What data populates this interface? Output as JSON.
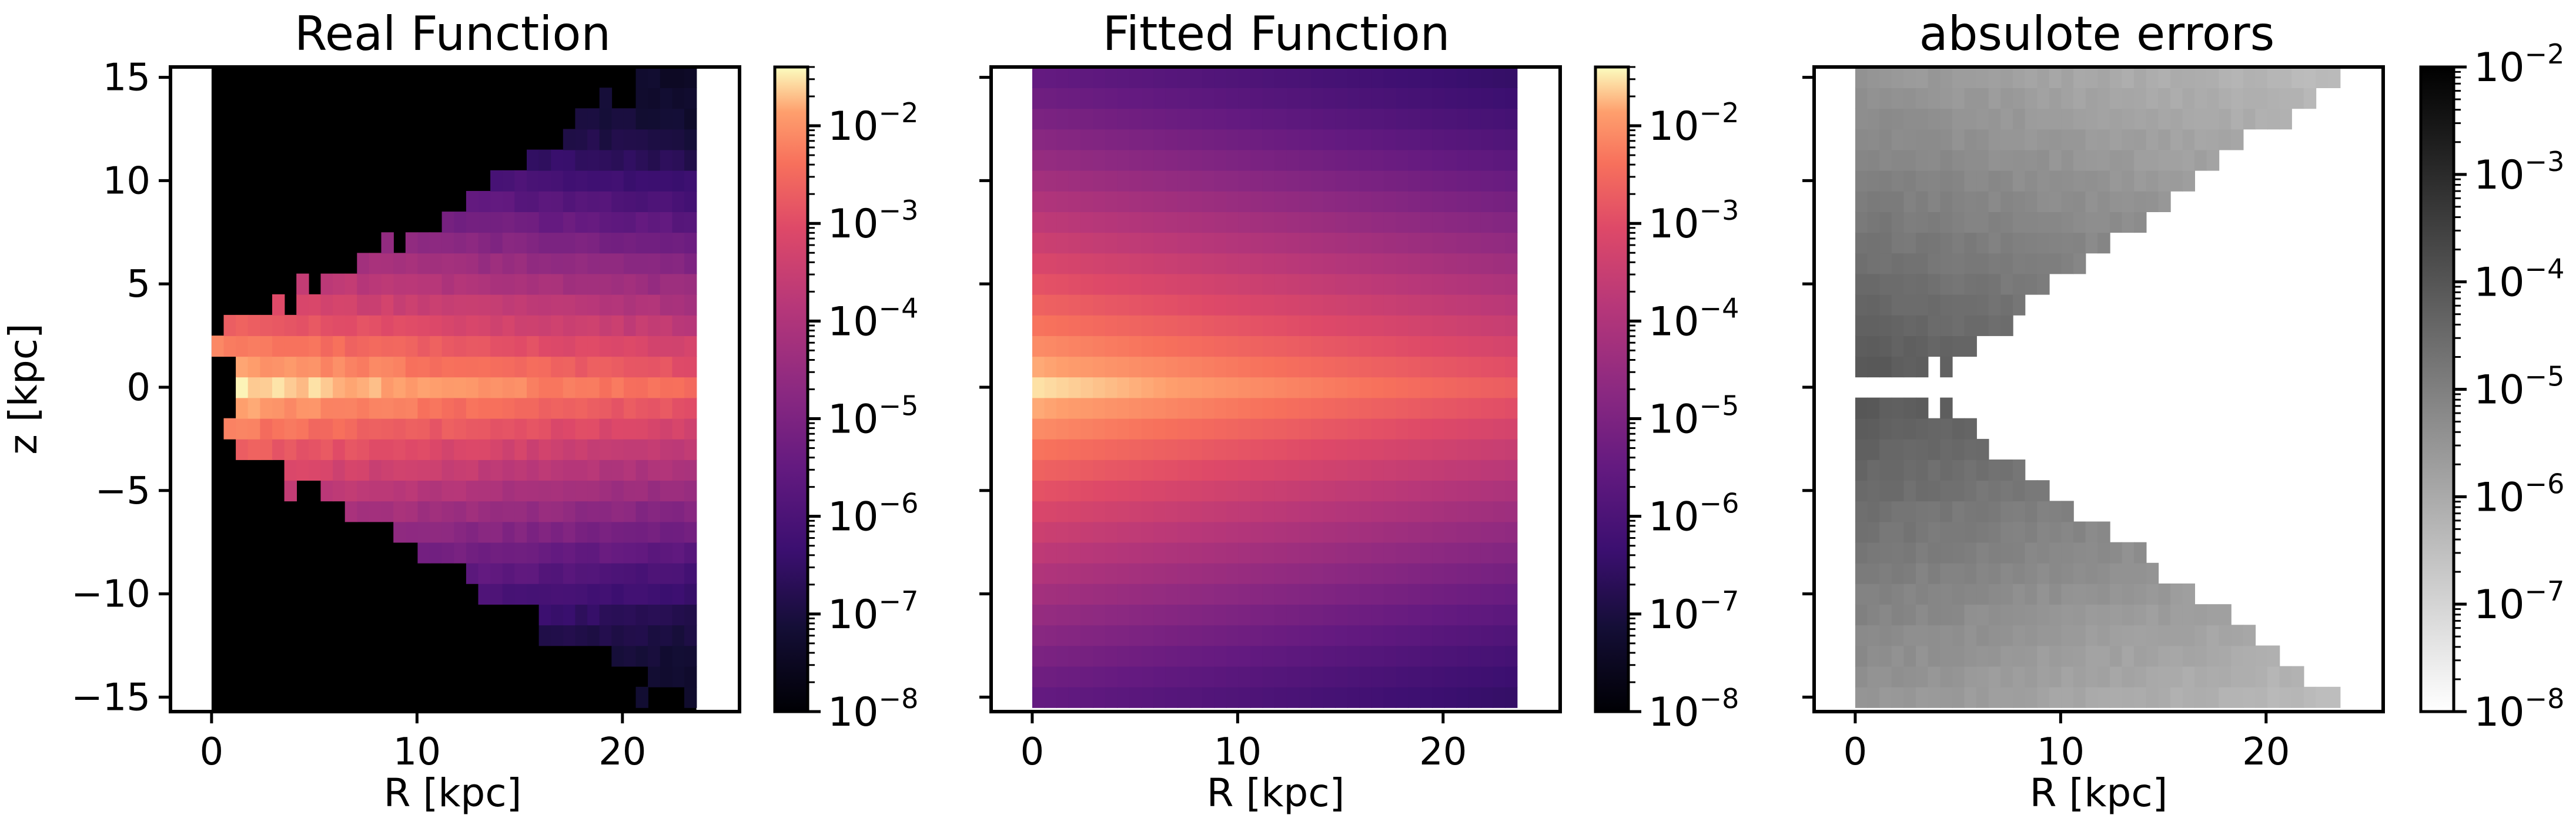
{
  "chart_data": [
    {
      "type": "heatmap",
      "title": "Real Function",
      "xlabel": "R [kpc]",
      "ylabel": "z [kpc]",
      "xlim": [
        -2,
        25.7
      ],
      "ylim": [
        -15.7,
        15.5
      ],
      "xticks": [
        0,
        10,
        20
      ],
      "yticks": [
        -15,
        -10,
        -5,
        0,
        5,
        10,
        15
      ],
      "data_extent": {
        "R": [
          0,
          23.6
        ],
        "z": [
          -15.5,
          15.5
        ]
      },
      "colormap": "magma",
      "colorbar": {
        "scale": "log",
        "range": [
          1e-08,
          0.04
        ],
        "ticks": [
          -8,
          -7,
          -6,
          -5,
          -4,
          -3,
          -2
        ],
        "tick_base": "10"
      },
      "background": "#000000"
    },
    {
      "type": "heatmap",
      "title": "Fitted Function",
      "xlabel": "R [kpc]",
      "ylabel": "",
      "xlim": [
        -2,
        25.7
      ],
      "ylim": [
        -15.7,
        15.5
      ],
      "xticks": [
        0,
        10,
        20
      ],
      "yticks": [
        -15,
        -10,
        -5,
        0,
        5,
        10,
        15
      ],
      "data_extent": {
        "R": [
          0,
          23.6
        ],
        "z": [
          -15.5,
          15.5
        ]
      },
      "colormap": "magma",
      "colorbar": {
        "scale": "log",
        "range": [
          1e-08,
          0.04
        ],
        "ticks": [
          -8,
          -7,
          -6,
          -5,
          -4,
          -3,
          -2
        ],
        "tick_base": "10"
      }
    },
    {
      "type": "heatmap",
      "title": "absulote errors",
      "xlabel": "R [kpc]",
      "ylabel": "",
      "xlim": [
        -2,
        25.7
      ],
      "ylim": [
        -15.7,
        15.5
      ],
      "xticks": [
        0,
        10,
        20
      ],
      "yticks": [
        -15,
        -10,
        -5,
        0,
        5,
        10,
        15
      ],
      "data_extent": {
        "R": [
          0,
          23.6
        ],
        "z": [
          -15.5,
          15.5
        ]
      },
      "colormap": "gray_r",
      "colorbar": {
        "scale": "log",
        "range": [
          1e-08,
          0.01
        ],
        "ticks": [
          -8,
          -7,
          -6,
          -5,
          -4,
          -3,
          -2
        ],
        "tick_base": "10"
      }
    }
  ]
}
